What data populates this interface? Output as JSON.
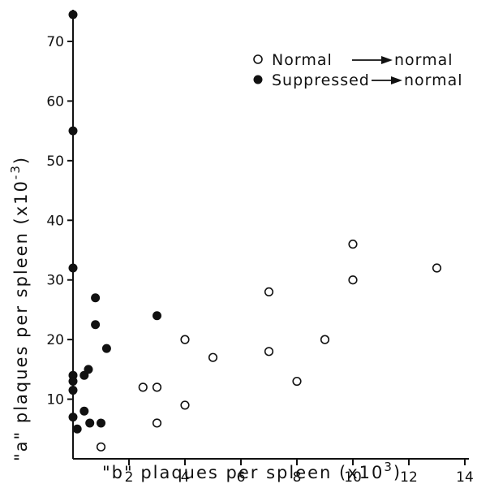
{
  "chart_data": {
    "type": "scatter",
    "xlabel": "\"b\" plaques per spleen (x10³)",
    "ylabel": "\"a\" plaques per spleen (x10⁻³)",
    "xlim": [
      0,
      14
    ],
    "ylim": [
      0,
      75
    ],
    "x_ticks": [
      2,
      4,
      6,
      8,
      10,
      12,
      14
    ],
    "y_ticks": [
      10,
      20,
      30,
      40,
      50,
      60,
      70
    ],
    "grid": false,
    "legend_position": "top-right",
    "series": [
      {
        "name": "Normal → normal",
        "marker": "open-circle",
        "points": [
          [
            1.0,
            2
          ],
          [
            2.5,
            12
          ],
          [
            3.0,
            12
          ],
          [
            3.0,
            6
          ],
          [
            4.0,
            20
          ],
          [
            4.0,
            9
          ],
          [
            5.0,
            17
          ],
          [
            7.0,
            28
          ],
          [
            7.0,
            18
          ],
          [
            8.0,
            13
          ],
          [
            9.0,
            20
          ],
          [
            10.0,
            36
          ],
          [
            10.0,
            30
          ],
          [
            13.0,
            32
          ]
        ]
      },
      {
        "name": "Suppressed → normal",
        "marker": "filled-circle",
        "points": [
          [
            0.0,
            74.5
          ],
          [
            0.0,
            55
          ],
          [
            0.0,
            32
          ],
          [
            0.0,
            14
          ],
          [
            0.0,
            13
          ],
          [
            0.0,
            11.5
          ],
          [
            0.0,
            7
          ],
          [
            0.15,
            5
          ],
          [
            0.4,
            8
          ],
          [
            0.4,
            14
          ],
          [
            0.55,
            15
          ],
          [
            0.6,
            6
          ],
          [
            0.8,
            27
          ],
          [
            0.8,
            22.5
          ],
          [
            1.0,
            6
          ],
          [
            1.2,
            18.5
          ],
          [
            3.0,
            24
          ]
        ]
      }
    ]
  },
  "labels": {
    "xlabel_main": "\"b\" plaques per spleen (x10",
    "xlabel_exp": "3",
    "xlabel_close": ")",
    "ylabel_main": "\"a\" plaques per spleen (x10",
    "ylabel_exp": "-3",
    "ylabel_close": ")",
    "legend_normal_a": "Normal",
    "legend_normal_b": "normal",
    "legend_supp_a": "Suppressed",
    "legend_supp_b": "normal"
  },
  "colors": {
    "ink": "#111111",
    "background": "#ffffff"
  }
}
